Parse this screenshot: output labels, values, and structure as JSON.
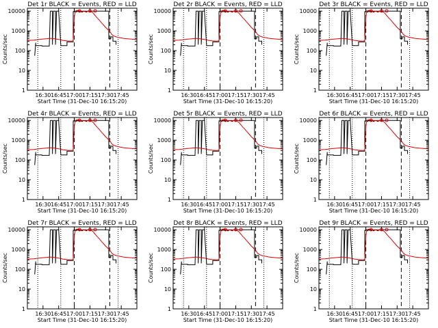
{
  "colors": {
    "events": "#000000",
    "lld": "#e00000",
    "background": "#ffffff"
  },
  "shared": {
    "xlabel": "Start Time (31-Dec-10 16:15:20)",
    "ylabel": "Counts/sec",
    "x_tick_labels": [
      "16:30",
      "16:45",
      "17:00",
      "17:15",
      "17:30",
      "17:45"
    ],
    "x_tick_values_min": [
      15,
      30,
      45,
      60,
      75,
      90
    ],
    "y_tick_labels": [
      "1",
      "10",
      "100",
      "1000",
      "10000"
    ],
    "y_tick_values": [
      1,
      10,
      100,
      1000,
      10000
    ],
    "xlim_min": [
      0,
      105
    ],
    "ylim": [
      1,
      14000
    ],
    "y_scale": "log"
  },
  "panels": [
    {
      "title": "Det 1r  BLACK = Events, RED = LLD"
    },
    {
      "title": "Det 2r  BLACK = Events, RED = LLD"
    },
    {
      "title": "Det 3r  BLACK = Events, RED = LLD"
    },
    {
      "title": "Det 4r  BLACK = Events, RED = LLD"
    },
    {
      "title": "Det 5r  BLACK = Events, RED = LLD"
    },
    {
      "title": "Det 6r  BLACK = Events, RED = LLD"
    },
    {
      "title": "Det 7r  BLACK = Events, RED = LLD"
    },
    {
      "title": "Det 8r  BLACK = Events, RED = LLD"
    },
    {
      "title": "Det 9r  BLACK = Events, RED = LLD"
    }
  ],
  "chart_data": {
    "type": "line",
    "y_scale": "log",
    "xlabel": "Start Time (31-Dec-10 16:15:20)",
    "ylabel": "Counts/sec",
    "ylim": [
      1,
      14000
    ],
    "x_units": "minutes after start",
    "vertical_markers": {
      "dotted_min": [
        10,
        32,
        87
      ],
      "dashed_min": [
        45,
        79
      ]
    },
    "series": [
      {
        "name": "BLACK = Events",
        "color": "#000000",
        "x": [
          7,
          8,
          8,
          14,
          14,
          21,
          21,
          22,
          24,
          24,
          25,
          27,
          27,
          28,
          30,
          32,
          32,
          38,
          38,
          44,
          44,
          45,
          45,
          46,
          46,
          47,
          47,
          48,
          48,
          49,
          49,
          50,
          50,
          51,
          51,
          52,
          52,
          53,
          53,
          54,
          54,
          55,
          55,
          56,
          56,
          57,
          57,
          58,
          60,
          62,
          65,
          68,
          70,
          72,
          74,
          75,
          77,
          78,
          78,
          80,
          80,
          82,
          82,
          85,
          85
        ],
        "y": [
          55,
          250,
          180,
          180,
          170,
          170,
          180,
          10000,
          10000,
          200,
          10000,
          10000,
          200,
          10000,
          10000,
          200,
          180,
          180,
          280,
          280,
          9500,
          9500,
          10000,
          10000,
          9000,
          9000,
          10000,
          10000,
          9500,
          9500,
          10000,
          10000,
          9200,
          9200,
          10000,
          10000,
          9000,
          9000,
          10000,
          10000,
          9800,
          9800,
          10000,
          10000,
          9000,
          9000,
          10000,
          10000,
          10000,
          10000,
          10000,
          10000,
          10000,
          10000,
          10000,
          10000,
          10000,
          10000,
          400,
          400,
          500,
          500,
          300,
          300,
          200
        ]
      },
      {
        "name": "RED = LLD",
        "color": "#e00000",
        "x": [
          0,
          6,
          10,
          14,
          18,
          22,
          26,
          30,
          34,
          38,
          42,
          44,
          45,
          46,
          47,
          48,
          50,
          52,
          55,
          58,
          61,
          63,
          65,
          67,
          69,
          71,
          73,
          75,
          77,
          79,
          80,
          81,
          83,
          85,
          88,
          92,
          96,
          100,
          105
        ],
        "y": [
          330,
          340,
          360,
          380,
          400,
          420,
          400,
          370,
          330,
          310,
          300,
          320,
          5000,
          10000,
          10500,
          10800,
          10500,
          10000,
          9500,
          9800,
          9300,
          8000,
          6000,
          4500,
          3500,
          2600,
          2000,
          1500,
          1200,
          900,
          800,
          650,
          550,
          500,
          460,
          420,
          400,
          380,
          360
        ]
      }
    ],
    "markers_lld_min": [
      50,
      60,
      65
    ]
  }
}
